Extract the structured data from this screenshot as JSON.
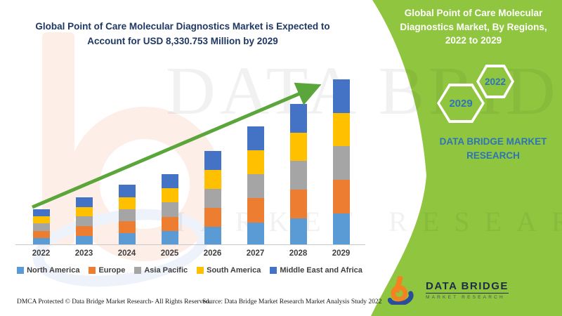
{
  "left_chart": {
    "title": "Global Point of Care Molecular Diagnostics Market is Expected to Account for USD 8,330.753 Million by 2029"
  },
  "chart_data": {
    "type": "bar",
    "stacked": true,
    "title": "Global Point of Care Molecular Diagnostics Market is Expected to Account for USD 8,330.753 Million by 2029",
    "xlabel": "",
    "ylabel": "",
    "values_unit": "USD Million",
    "axis_ticks_visible": false,
    "grid": false,
    "legend_position": "bottom",
    "categories": [
      "2022",
      "2023",
      "2024",
      "2025",
      "2026",
      "2027",
      "2028",
      "2029"
    ],
    "series": [
      {
        "name": "North America",
        "color": "#5B9BD5",
        "values": [
          330,
          443,
          563,
          666,
          884,
          1114,
          1329,
          1557
        ]
      },
      {
        "name": "Europe",
        "color": "#ED7D31",
        "values": [
          360,
          484,
          614,
          726,
          965,
          1216,
          1449,
          1702
        ]
      },
      {
        "name": "Asia Pacific",
        "color": "#A5A5A5",
        "values": [
          360,
          484,
          614,
          726,
          965,
          1216,
          1449,
          1702
        ]
      },
      {
        "name": "South America",
        "color": "#FFC000",
        "values": [
          353,
          474,
          602,
          712,
          946,
          1192,
          1421,
          1667
        ]
      },
      {
        "name": "Middle East and Africa",
        "color": "#4472C4",
        "values": [
          362,
          485,
          617,
          730,
          970,
          1222,
          1457,
          1702.75
        ]
      }
    ],
    "totals_estimated": [
      1765,
      2370,
      3010,
      3560,
      4730,
      5960,
      7105,
      8330.753
    ],
    "annotations": [
      "upward green trend arrow from 2022 to 2029"
    ]
  },
  "right_panel": {
    "heading": "Global Point of Care Molecular Diagnostics Market, By Regions, 2022 to 2029",
    "hexagon_front_label": "2029",
    "hexagon_back_label": "2022",
    "brand_caption": "DATA BRIDGE MARKET RESEARCH",
    "logo_title": "DATA BRIDGE",
    "logo_subtitle": "MARKET RESEARCH"
  },
  "watermark": {
    "text_top": "DATA BRIDGE",
    "text_bottom": "MARKET RESEARCH"
  },
  "footer": {
    "dmca": "DMCA Protected © Data Bridge Market Research- All Rights Reserved.",
    "source": "Source: Data Bridge Market Research Market Analysis Study 2022"
  },
  "colors": {
    "green_panel": "#90C53F",
    "arrow_green": "#5BA63A",
    "title_navy": "#1F3864",
    "brand_blue": "#2E75B6",
    "logo_orange": "#F58220",
    "logo_blue": "#2B4E9B"
  }
}
